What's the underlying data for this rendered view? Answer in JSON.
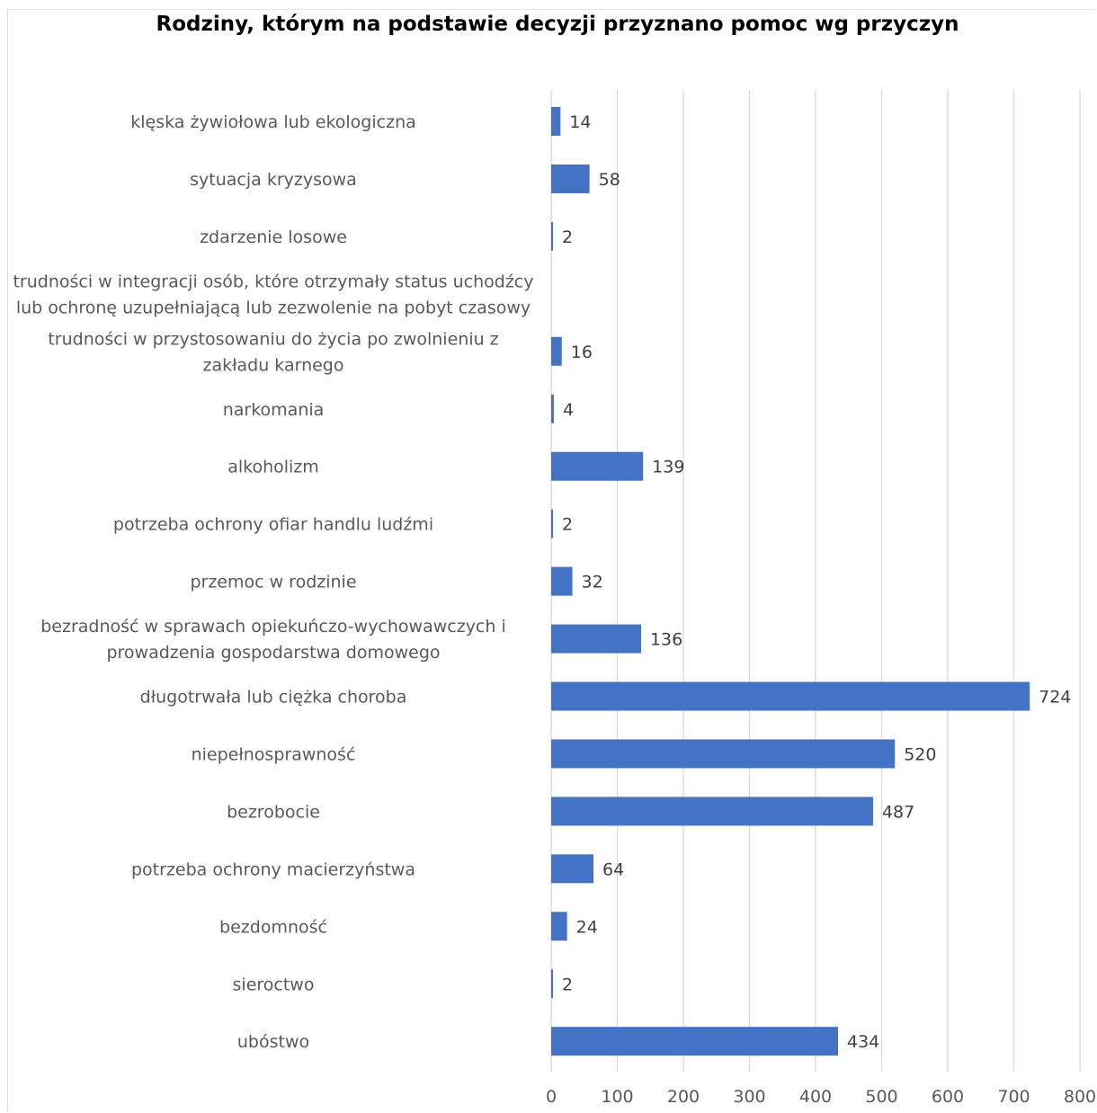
{
  "chart_data": {
    "type": "bar",
    "orientation": "horizontal",
    "title": "Rodziny, którym na podstawie decyzji przyznano pomoc wg przyczyn",
    "categories": [
      [
        "klęska żywiołowa lub ekologiczna"
      ],
      [
        "sytuacja kryzysowa"
      ],
      [
        "zdarzenie losowe"
      ],
      [
        "trudności w integracji osób, które otrzymały status uchodźcy",
        "lub ochronę uzupełniającą lub zezwolenie na pobyt czasowy"
      ],
      [
        "trudności w przystosowaniu do życia po zwolnieniu z",
        "zakładu karnego"
      ],
      [
        "narkomania"
      ],
      [
        "alkoholizm"
      ],
      [
        "potrzeba ochrony ofiar handlu ludźmi"
      ],
      [
        "przemoc w rodzinie"
      ],
      [
        "bezradność w sprawach opiekuńczo-wychowawczych i",
        "prowadzenia gospodarstwa domowego"
      ],
      [
        "długotrwała lub ciężka choroba"
      ],
      [
        "niepełnosprawność"
      ],
      [
        "bezrobocie"
      ],
      [
        "potrzeba ochrony macierzyństwa"
      ],
      [
        "bezdomność"
      ],
      [
        "sieroctwo"
      ],
      [
        "ubóstwo"
      ]
    ],
    "values": [
      14,
      58,
      2,
      null,
      16,
      4,
      139,
      2,
      32,
      136,
      724,
      520,
      487,
      64,
      24,
      2,
      434
    ],
    "xlim": [
      0,
      800
    ],
    "xticks": [
      "0",
      "100",
      "200",
      "300",
      "400",
      "500",
      "600",
      "700",
      "800"
    ],
    "grid": true,
    "legend": "none",
    "bar_color": "#4472c4",
    "grid_color": "#d9d9d9"
  }
}
